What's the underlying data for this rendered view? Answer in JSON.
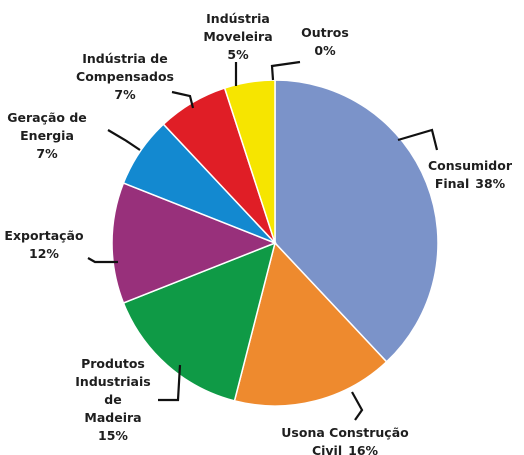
{
  "chart_data": {
    "type": "pie",
    "categories": [
      "Consumidor Final",
      "Usona Construção Civil",
      "Produtos Industriais de Madeira",
      "Exportação",
      "Geração de Energia",
      "Indústria de Compensados",
      "Indústria Moveleira",
      "Outros"
    ],
    "values": [
      38,
      16,
      15,
      12,
      7,
      7,
      5,
      0
    ],
    "value_labels": [
      "38%",
      "16%",
      "15%",
      "12%",
      "7%",
      "7%",
      "5%",
      "0%"
    ],
    "colors": [
      "#7b93c9",
      "#ee8a2e",
      "#0f9a46",
      "#98307b",
      "#1389d0",
      "#e01e26",
      "#f6e500",
      "#cccccc"
    ]
  }
}
